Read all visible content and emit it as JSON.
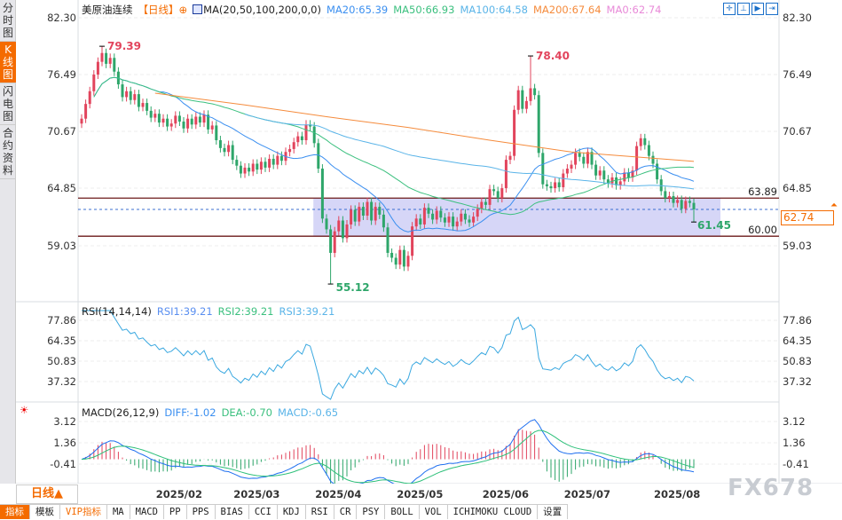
{
  "sidebar": {
    "tabs": [
      {
        "label": "分时图"
      },
      {
        "label": "K线图",
        "active": true
      },
      {
        "label": "闪电图"
      },
      {
        "label": "合约资料"
      }
    ]
  },
  "header": {
    "instrument": "美原油连续",
    "period": "【日线】",
    "crosshair_icon": "⊕",
    "ma_label": "MA(20,50,100,200,0,0)",
    "ma20": "MA20:65.39",
    "ma50": "MA50:66.93",
    "ma100": "MA100:64.58",
    "ma200": "MA200:67.64",
    "ma0": "MA0:62.74"
  },
  "tools": [
    "crosshair-tool",
    "zoom-in-tool",
    "next-tool",
    "end-tool"
  ],
  "price_axis": {
    "ticks": [
      "82.30",
      "76.49",
      "70.67",
      "64.85",
      "59.03"
    ],
    "current": "62.74"
  },
  "rsi": {
    "label": "RSI(14,14,14)",
    "rsi1": "RSI1:39.21",
    "rsi2": "RSI2:39.21",
    "rsi3": "RSI3:39.21",
    "ticks": [
      "77.86",
      "64.35",
      "50.83",
      "37.32"
    ]
  },
  "macd": {
    "label": "MACD(26,12,9)",
    "diff": "DIFF:-1.02",
    "dea": "DEA:-0.70",
    "macd": "MACD:-0.65",
    "ticks": [
      "3.12",
      "1.36",
      "-0.41"
    ]
  },
  "colors": {
    "up": "#e2445c",
    "down": "#2ea66a",
    "ma20": "#3b8ff0",
    "ma50": "#3cc07f",
    "ma100": "#5ab4e8",
    "ma200": "#f58b3c",
    "ma0": "#e88ad8",
    "accent": "#f46b00"
  },
  "chart_data": {
    "type": "candlestick",
    "closes": [
      72.0,
      73.5,
      74.8,
      76.5,
      77.8,
      78.7,
      77.6,
      78.2,
      76.8,
      75.5,
      74.2,
      74.8,
      73.9,
      74.5,
      73.2,
      73.6,
      72.8,
      72.1,
      72.5,
      71.6,
      72.0,
      71.2,
      71.5,
      72.3,
      71.7,
      71.0,
      72.0,
      71.4,
      72.2,
      71.6,
      72.4,
      70.9,
      71.3,
      69.8,
      69.0,
      68.6,
      69.3,
      67.8,
      67.2,
      66.4,
      67.0,
      66.6,
      67.4,
      66.8,
      67.6,
      67.0,
      67.9,
      67.3,
      68.2,
      67.7,
      68.6,
      68.9,
      69.6,
      70.2,
      69.8,
      71.4,
      71.2,
      69.5,
      66.9,
      61.8,
      60.7,
      58.3,
      60.5,
      61.6,
      59.8,
      61.2,
      62.7,
      61.5,
      63.0,
      62.1,
      63.5,
      61.6,
      63.0,
      62.2,
      60.9,
      58.3,
      57.8,
      57.1,
      58.6,
      56.9,
      58.0,
      61.0,
      61.8,
      61.2,
      62.9,
      62.3,
      61.7,
      62.6,
      61.9,
      61.4,
      62.0,
      61.0,
      61.5,
      62.3,
      61.7,
      61.4,
      62.0,
      62.8,
      63.5,
      63.2,
      64.8,
      64.6,
      63.9,
      64.9,
      67.8,
      68.2,
      72.9,
      74.9,
      73.0,
      73.8,
      75.1,
      74.4,
      68.5,
      65.3,
      65.1,
      64.9,
      65.5,
      65.0,
      66.4,
      66.9,
      67.3,
      68.5,
      68.1,
      67.4,
      68.6,
      67.3,
      66.2,
      66.7,
      65.8,
      65.4,
      66.0,
      65.2,
      65.6,
      66.5,
      66.0,
      66.7,
      69.2,
      70.0,
      69.3,
      68.2,
      67.4,
      65.8,
      64.6,
      63.9,
      64.1,
      63.4,
      63.7,
      62.8,
      63.6,
      63.4,
      62.74
    ],
    "ma200_points": [
      [
        18,
        74.6
      ],
      [
        40,
        73.4
      ],
      [
        60,
        72.2
      ],
      [
        80,
        71.1
      ],
      [
        100,
        69.8
      ],
      [
        120,
        68.6
      ],
      [
        150,
        67.64
      ]
    ],
    "extremes": [
      {
        "index": 5,
        "type": "high",
        "label": "79.39",
        "value": 79.39
      },
      {
        "index": 110,
        "type": "high",
        "label": "78.40",
        "value": 78.4
      },
      {
        "index": 61,
        "type": "low",
        "label": "55.12",
        "value": 55.12
      },
      {
        "index": 150,
        "type": "low",
        "label": "61.45",
        "value": 61.45
      }
    ],
    "levels": [
      {
        "label": "63.89",
        "value": 63.89
      },
      {
        "label": "60.00",
        "value": 60.0
      }
    ],
    "zone": {
      "from_index": 57,
      "top": 63.89,
      "bottom": 60.0
    },
    "x_ticks": [
      {
        "label": "2025/02",
        "index": 23
      },
      {
        "label": "2025/03",
        "index": 42
      },
      {
        "label": "2025/04",
        "index": 62
      },
      {
        "label": "2025/05",
        "index": 82
      },
      {
        "label": "2025/06",
        "index": 103
      },
      {
        "label": "2025/07",
        "index": 123
      },
      {
        "label": "2025/08",
        "index": 145
      }
    ]
  },
  "bottom": {
    "period_button": "日线▲",
    "watermark": "FX678",
    "tabs": [
      "指标",
      "模板",
      "VIP指标",
      "MA",
      "MACD",
      "PP",
      "PPS",
      "BIAS",
      "CCI",
      "KDJ",
      "RSI",
      "CR",
      "PSY",
      "BOLL",
      "VOL",
      "ICHIMOKU CLOUD",
      "设置"
    ]
  }
}
